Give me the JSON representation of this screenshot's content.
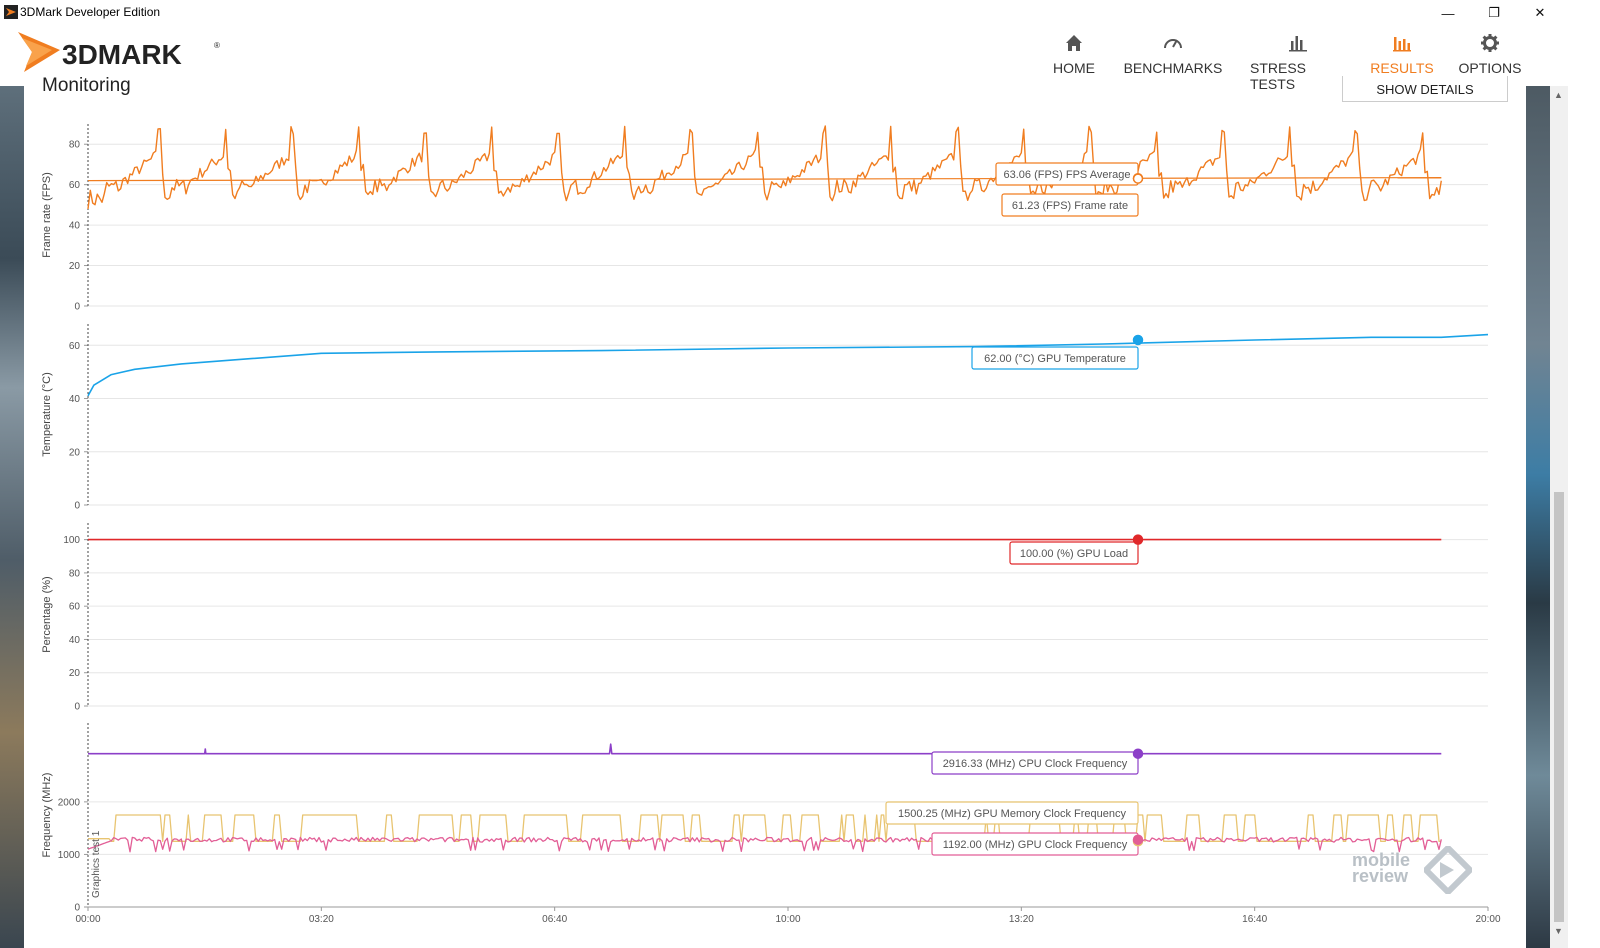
{
  "window": {
    "title": "3DMark Developer Edition"
  },
  "logo": {
    "text": "3DMARK",
    "mark": "®"
  },
  "nav": [
    {
      "label": "HOME",
      "icon": "home-icon",
      "active": false
    },
    {
      "label": "BENCHMARKS",
      "icon": "gauge-icon",
      "active": false
    },
    {
      "label": "STRESS TESTS",
      "icon": "bar-chart-icon",
      "active": false
    },
    {
      "label": "RESULTS",
      "icon": "results-chart-icon",
      "active": true
    },
    {
      "label": "OPTIONS",
      "icon": "gear-icon",
      "active": false
    }
  ],
  "section": {
    "title": "Monitoring",
    "show_details": "SHOW DETAILS"
  },
  "watermark": {
    "line1": "mobile",
    "line2": "review"
  },
  "colors": {
    "accent": "#f07d20",
    "fps": "#f07d20",
    "temperature": "#1aa3e8",
    "gpu_load": "#e0282a",
    "cpu_clock": "#8c3fc8",
    "mem_clock": "#e8c470",
    "gpu_clock": "#e25e96"
  },
  "chart_data": {
    "type": "line",
    "xlabel": "",
    "x_ticks": [
      "00:00",
      "03:20",
      "06:40",
      "10:00",
      "13:20",
      "16:40",
      "20:00"
    ],
    "x_range_seconds": [
      0,
      1200
    ],
    "vertical_marker_label": "Graphics test 1",
    "panels": [
      {
        "ylabel": "Frame rate (FPS)",
        "ylim": [
          0,
          90
        ],
        "y_ticks": [
          0,
          20,
          40,
          60,
          80
        ],
        "series": [
          {
            "name": "Frame rate",
            "unit": "FPS",
            "readout": "61.23 (FPS) Frame rate",
            "base": 61,
            "low": 52,
            "high": 89,
            "spike_period_seconds": 57
          },
          {
            "name": "FPS Average",
            "unit": "FPS",
            "readout": "63.06 (FPS) FPS Average",
            "start": 62,
            "end": 63.5
          }
        ]
      },
      {
        "ylabel": "Temperature (°C)",
        "ylim": [
          0,
          68
        ],
        "y_ticks": [
          0,
          20,
          40,
          60
        ],
        "series": [
          {
            "name": "GPU Temperature",
            "unit": "°C",
            "readout": "62.00 (°C) GPU Temperature",
            "points": [
              [
                0,
                41
              ],
              [
                5,
                45
              ],
              [
                20,
                49
              ],
              [
                40,
                51
              ],
              [
                80,
                53
              ],
              [
                140,
                55
              ],
              [
                200,
                57
              ],
              [
                300,
                57.5
              ],
              [
                440,
                58
              ],
              [
                600,
                59
              ],
              [
                760,
                59.5
              ],
              [
                870,
                60.5
              ],
              [
                1000,
                62
              ],
              [
                1100,
                63
              ],
              [
                1160,
                63
              ],
              [
                1200,
                64
              ]
            ]
          }
        ]
      },
      {
        "ylabel": "Percentage (%)",
        "ylim": [
          0,
          110
        ],
        "y_ticks": [
          0,
          20,
          40,
          60,
          80,
          100
        ],
        "series": [
          {
            "name": "GPU Load",
            "unit": "%",
            "readout": "100.00 (%) GPU Load",
            "value": 100
          }
        ]
      },
      {
        "ylabel": "Frequency (MHz)",
        "ylim": [
          0,
          3500
        ],
        "y_ticks": [
          0,
          1000,
          2000
        ],
        "series": [
          {
            "name": "CPU Clock Frequency",
            "unit": "MHz",
            "readout": "2916.33 (MHz) CPU Clock Frequency",
            "value": 2916
          },
          {
            "name": "GPU Memory Clock Frequency",
            "unit": "MHz",
            "readout": "1500.25 (MHz) GPU Memory Clock Frequency",
            "low": 1250,
            "high": 1750
          },
          {
            "name": "GPU Clock Frequency",
            "unit": "MHz",
            "readout": "1192.00 (MHz) GPU Clock Frequency",
            "base": 1280,
            "low": 1050,
            "high": 1350
          }
        ]
      }
    ]
  }
}
